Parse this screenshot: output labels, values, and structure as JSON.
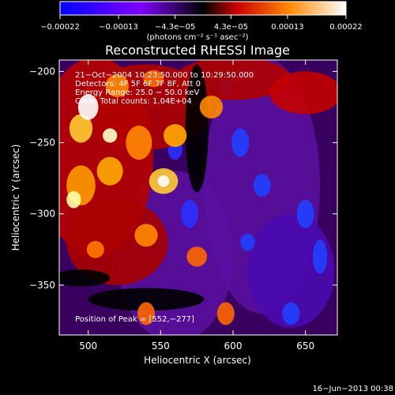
{
  "chart_data": {
    "type": "heatmap",
    "title": "Reconstructed RHESSI Image",
    "xlabel": "Heliocentric X (arcsec)",
    "ylabel": "Heliocentric Y (arcsec)",
    "xlim": [
      480,
      672
    ],
    "ylim": [
      -385,
      -192
    ],
    "x_ticks": [
      500,
      550,
      600,
      650
    ],
    "x_tick_labels": [
      "500",
      "550",
      "600",
      "650"
    ],
    "y_ticks": [
      -200,
      -250,
      -300,
      -350
    ],
    "y_tick_labels": [
      "−200",
      "−250",
      "−300",
      "−350"
    ],
    "colorbar": {
      "min": -0.00022,
      "max": 0.00022,
      "ticks": [
        -0.00022,
        -0.00013,
        -4.3e-05,
        4.3e-05,
        0.00013,
        0.00022
      ],
      "tick_labels": [
        "−0.00022",
        "−0.00013",
        "−4.3e−05",
        "4.3e−05",
        "0.00013",
        "0.00022"
      ],
      "unit_label": "(photons cm⁻² s⁻¹ asec⁻²)",
      "colormap": [
        "#0000ff",
        "#7f00ff",
        "#000000",
        "#cc0000",
        "#ff8800",
        "#ffffff"
      ]
    },
    "annotations": [
      "21−Oct−2004 10:23:50.000 to 10:29:50.000",
      "Detectors: 4F 5F 6F 7F 8F, Att 0",
      "Energy Range: 25.0 − 50.0 keV",
      "Clean    Total counts: 1.04E+04"
    ],
    "peak_label": "Position of Peak = [552,−277]",
    "peak": [
      552,
      -277
    ],
    "footer_date": "16−Jun−2013 00:38"
  }
}
